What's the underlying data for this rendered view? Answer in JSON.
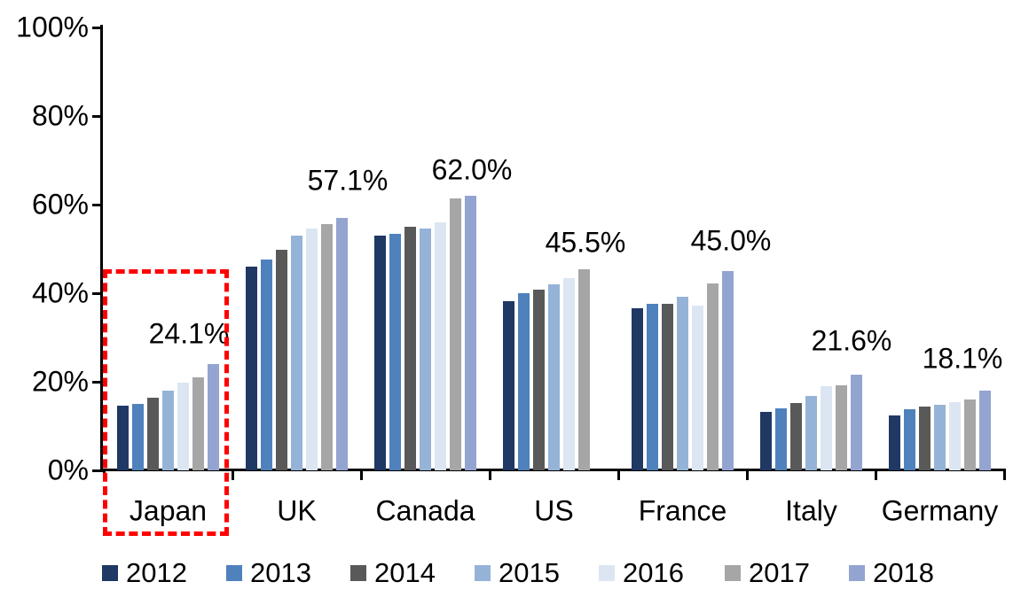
{
  "chart_data": {
    "type": "bar",
    "title": "",
    "xlabel": "",
    "ylabel": "",
    "ylim": [
      0,
      100
    ],
    "grid": false,
    "legend_position": "bottom",
    "categories": [
      "Japan",
      "UK",
      "Canada",
      "US",
      "France",
      "Italy",
      "Germany"
    ],
    "series": [
      {
        "name": "2012",
        "color": "#1F3864",
        "values": [
          14.7,
          46.0,
          53.0,
          38.2,
          36.6,
          13.3,
          12.5
        ]
      },
      {
        "name": "2013",
        "color": "#4F81BD",
        "values": [
          15.0,
          47.6,
          53.5,
          40.0,
          37.7,
          14.1,
          13.9
        ]
      },
      {
        "name": "2014",
        "color": "#595959",
        "values": [
          16.5,
          49.9,
          55.0,
          40.9,
          37.6,
          15.3,
          14.4
        ]
      },
      {
        "name": "2015",
        "color": "#95B3D7",
        "values": [
          18.0,
          53.1,
          54.7,
          42.0,
          39.2,
          16.9,
          14.9
        ]
      },
      {
        "name": "2016",
        "color": "#DCE6F2",
        "values": [
          19.9,
          54.7,
          56.0,
          43.4,
          37.3,
          19.0,
          15.5
        ]
      },
      {
        "name": "2017",
        "color": "#A6A6A6",
        "values": [
          21.0,
          55.7,
          61.5,
          45.5,
          42.3,
          19.2,
          16.0
        ]
      },
      {
        "name": "2018",
        "color": "#93A4D0",
        "values": [
          24.1,
          57.1,
          62.0,
          null,
          45.0,
          21.6,
          18.1
        ]
      }
    ],
    "data_labels": [
      "24.1%",
      "57.1%",
      "62.0%",
      "45.5%",
      "45.0%",
      "21.6%",
      "18.1%"
    ],
    "y_ticks": [
      {
        "label": "0%",
        "value": 0
      },
      {
        "label": "20%",
        "value": 20
      },
      {
        "label": "40%",
        "value": 40
      },
      {
        "label": "60%",
        "value": 60
      },
      {
        "label": "80%",
        "value": 80
      },
      {
        "label": "100%",
        "value": 100
      }
    ],
    "highlight": {
      "category": "Japan",
      "color": "#FF0000",
      "style": "dashed-box"
    }
  }
}
